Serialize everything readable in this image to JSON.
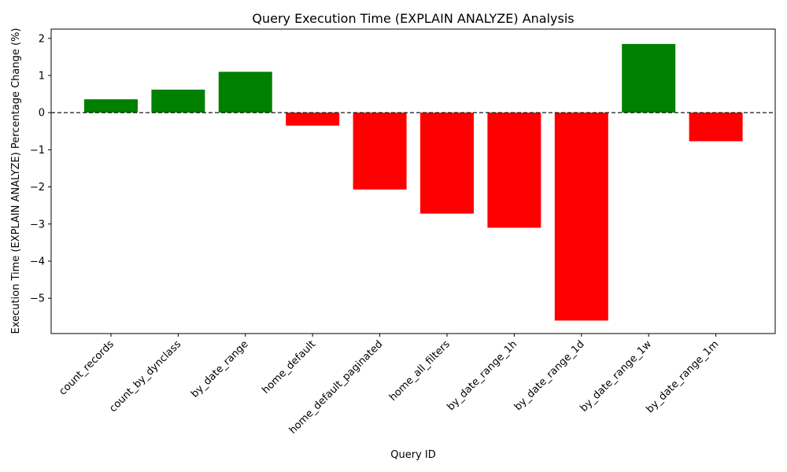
{
  "chart_data": {
    "type": "bar",
    "title": "Query Execution Time (EXPLAIN ANALYZE) Analysis",
    "xlabel": "Query ID",
    "ylabel": "Execution Time (EXPLAIN ANALYZE) Percentage Change (%)",
    "categories": [
      "count_records",
      "count_by_dynclass",
      "by_date_range",
      "home_default",
      "home_default_paginated",
      "home_all_filters",
      "by_date_range_1h",
      "by_date_range_1d",
      "by_date_range_1w",
      "by_date_range_1m"
    ],
    "values": [
      0.36,
      0.62,
      1.1,
      -0.35,
      -2.07,
      -2.72,
      -3.1,
      -5.6,
      1.85,
      -0.77
    ],
    "ylim": [
      -5.95,
      2.25
    ],
    "yticks": [
      2,
      1,
      0,
      -1,
      -2,
      -3,
      -4,
      -5
    ],
    "ytick_labels": [
      "2",
      "1",
      "0",
      "−1",
      "−2",
      "−3",
      "−4",
      "−5"
    ],
    "positive_color": "#008000",
    "negative_color": "#ff0000",
    "zero_line": {
      "style": "dashed",
      "color": "#000000"
    },
    "grid": false,
    "legend": "none"
  }
}
